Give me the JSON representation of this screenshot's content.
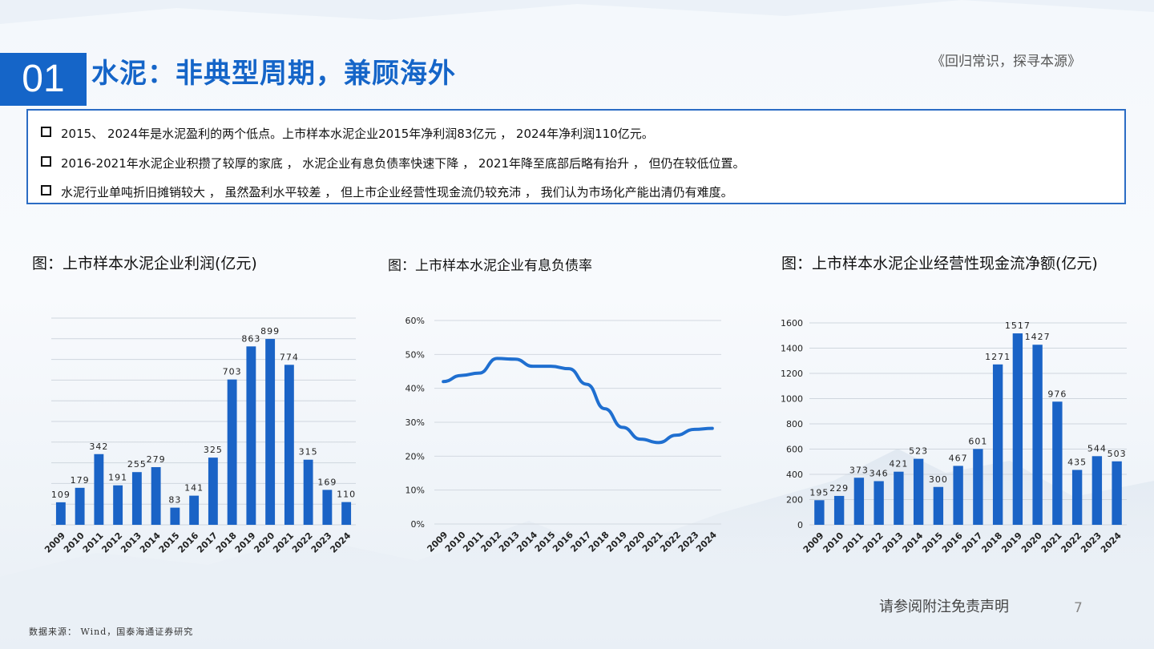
{
  "header": {
    "section_number": "01",
    "title": "水泥：非典型周期，兼顾海外",
    "tagline": "《回归常识，探寻本源》"
  },
  "bullets": [
    "2015、  2024年是水泥盈利的两个低点。上市样本水泥企业2015年净利润83亿元 ， 2024年净利润110亿元。",
    "2016-2021年水泥企业积攒了较厚的家底 ， 水泥企业有息负债率快速下降 ， 2021年降至底部后略有抬升 ， 但仍在较低位置。",
    "水泥行业单吨折旧摊销较大 ， 虽然盈利水平较差 ， 但上市企业经营性现金流仍较充沛 ， 我们认为市场化产能出清仍有难度。"
  ],
  "chart_titles": {
    "profit": "图：上市样本水泥企业利润(亿元)",
    "debt": "图：上市样本水泥企业有息负债率",
    "cashflow": "图：上市样本水泥企业经营性现金流净额(亿元)"
  },
  "footer": {
    "source": "数据来源： Wind，国泰海通证券研究",
    "disclaimer": "请参阅附注免责声明",
    "page_number": "7"
  },
  "colors": {
    "accent": "#1565c8",
    "bar": "#1a63c6",
    "line": "#1f6fd0"
  },
  "chart_data": [
    {
      "type": "bar",
      "categories": [
        "2009",
        "2010",
        "2011",
        "2012",
        "2013",
        "2014",
        "2015",
        "2016",
        "2017",
        "2018",
        "2019",
        "2020",
        "2021",
        "2022",
        "2023",
        "2024"
      ],
      "values": [
        109,
        179,
        342,
        191,
        255,
        279,
        83,
        141,
        325,
        703,
        863,
        899,
        774,
        315,
        169,
        110
      ],
      "title": "图：上市样本水泥企业利润(亿元)",
      "ylim": [
        0,
        1000
      ],
      "grid": true
    },
    {
      "type": "line",
      "x": [
        "2009",
        "2010",
        "2011",
        "2012",
        "2013",
        "2014",
        "2015",
        "2016",
        "2017",
        "2018",
        "2019",
        "2020",
        "2021",
        "2022",
        "2023",
        "2024"
      ],
      "values": [
        42,
        43.8,
        44.5,
        48.8,
        48.6,
        46.5,
        46.5,
        45.8,
        41.2,
        34,
        28.5,
        25,
        24,
        26.2,
        27.9,
        28.2
      ],
      "title": "图：上市样本水泥企业有息负债率",
      "yticks": [
        "0%",
        "10%",
        "20%",
        "30%",
        "40%",
        "50%",
        "60%"
      ],
      "ylim": [
        0,
        60
      ],
      "grid": true
    },
    {
      "type": "bar",
      "categories": [
        "2009",
        "2010",
        "2011",
        "2012",
        "2013",
        "2014",
        "2015",
        "2016",
        "2017",
        "2018",
        "2019",
        "2020",
        "2021",
        "2022",
        "2023",
        "2024"
      ],
      "values": [
        195,
        229,
        373,
        346,
        421,
        523,
        300,
        467,
        601,
        1271,
        1517,
        1427,
        976,
        435,
        544,
        503
      ],
      "title": "图：上市样本水泥企业经营性现金流净额(亿元)",
      "yticks": [
        "0",
        "200",
        "400",
        "600",
        "800",
        "1000",
        "1200",
        "1400",
        "1600"
      ],
      "ylim": [
        0,
        1600
      ],
      "grid": true
    }
  ]
}
